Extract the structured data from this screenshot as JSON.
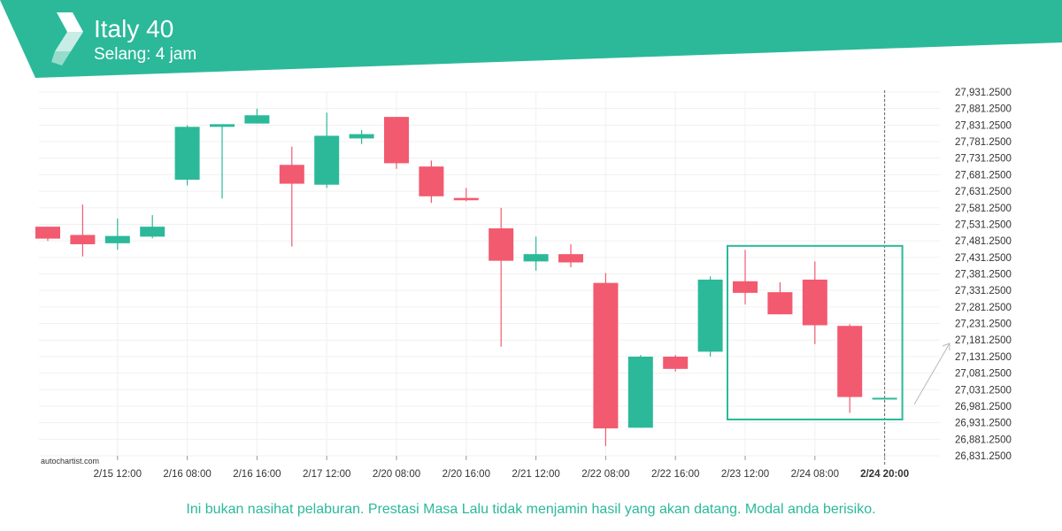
{
  "header": {
    "title": "Italy 40",
    "subtitle": "Selang: 4 jam",
    "brand_color": "#2bb99a"
  },
  "watermark": "autochartist.com",
  "disclaimer": "Ini bukan nasihat pelaburan. Prestasi Masa Lalu tidak menjamin hasil yang akan datang. Modal anda berisiko.",
  "chart_data": {
    "type": "candlestick",
    "y_ticks": [
      "26,831.2500",
      "26,881.2500",
      "26,931.2500",
      "26,981.2500",
      "27,031.2500",
      "27,081.2500",
      "27,131.2500",
      "27,181.2500",
      "27,231.2500",
      "27,281.2500",
      "27,331.2500",
      "27,381.2500",
      "27,431.2500",
      "27,481.2500",
      "27,531.2500",
      "27,581.2500",
      "27,631.2500",
      "27,681.2500",
      "27,731.2500",
      "27,781.2500",
      "27,831.2500",
      "27,881.2500",
      "27,931.2500"
    ],
    "ylim": [
      26831.25,
      27931.25
    ],
    "x_ticks": [
      {
        "label": "2/15 12:00",
        "index": 2
      },
      {
        "label": "2/16 08:00",
        "index": 4
      },
      {
        "label": "2/16 16:00",
        "index": 6
      },
      {
        "label": "2/17 12:00",
        "index": 8
      },
      {
        "label": "2/20 08:00",
        "index": 10
      },
      {
        "label": "2/20 16:00",
        "index": 12
      },
      {
        "label": "2/21 12:00",
        "index": 14
      },
      {
        "label": "2/22 08:00",
        "index": 16
      },
      {
        "label": "2/22 16:00",
        "index": 18
      },
      {
        "label": "2/23 12:00",
        "index": 20
      },
      {
        "label": "2/24 08:00",
        "index": 22
      },
      {
        "label": "2/24 20:00",
        "index": 24,
        "bold": true
      }
    ],
    "colors": {
      "up": "#2bb99a",
      "down": "#f25a6f"
    },
    "candles": [
      {
        "o": 27524,
        "h": 27524,
        "l": 27481,
        "c": 27488
      },
      {
        "o": 27499,
        "h": 27591,
        "l": 27434,
        "c": 27471
      },
      {
        "o": 27474,
        "h": 27549,
        "l": 27454,
        "c": 27496
      },
      {
        "o": 27494,
        "h": 27559,
        "l": 27489,
        "c": 27524
      },
      {
        "o": 27666,
        "h": 27831,
        "l": 27649,
        "c": 27826
      },
      {
        "o": 27826,
        "h": 27834,
        "l": 27609,
        "c": 27834
      },
      {
        "o": 27836,
        "h": 27881,
        "l": 27836,
        "c": 27861
      },
      {
        "o": 27711,
        "h": 27766,
        "l": 27464,
        "c": 27654
      },
      {
        "o": 27651,
        "h": 27869,
        "l": 27641,
        "c": 27799
      },
      {
        "o": 27791,
        "h": 27816,
        "l": 27774,
        "c": 27804
      },
      {
        "o": 27856,
        "h": 27856,
        "l": 27699,
        "c": 27716
      },
      {
        "o": 27706,
        "h": 27724,
        "l": 27596,
        "c": 27616
      },
      {
        "o": 27611,
        "h": 27641,
        "l": 27601,
        "c": 27604
      },
      {
        "o": 27519,
        "h": 27581,
        "l": 27161,
        "c": 27421
      },
      {
        "o": 27419,
        "h": 27494,
        "l": 27391,
        "c": 27441
      },
      {
        "o": 27441,
        "h": 27471,
        "l": 27401,
        "c": 27416
      },
      {
        "o": 27354,
        "h": 27384,
        "l": 26861,
        "c": 26914
      },
      {
        "o": 26916,
        "h": 27136,
        "l": 26916,
        "c": 27131
      },
      {
        "o": 27131,
        "h": 27136,
        "l": 27086,
        "c": 27094
      },
      {
        "o": 27146,
        "h": 27374,
        "l": 27131,
        "c": 27364
      },
      {
        "o": 27359,
        "h": 27454,
        "l": 27289,
        "c": 27324
      },
      {
        "o": 27326,
        "h": 27356,
        "l": 27259,
        "c": 27259
      },
      {
        "o": 27364,
        "h": 27419,
        "l": 27169,
        "c": 27226
      },
      {
        "o": 27224,
        "h": 27229,
        "l": 26961,
        "c": 27009
      },
      {
        "o": 27004,
        "h": 27004,
        "l": 27004,
        "c": 27004
      }
    ],
    "highlight_box": {
      "from_index": 20,
      "to_index": 24,
      "y_top": 27466,
      "y_bottom": 26941,
      "color": "#2bb99a"
    },
    "grid": true
  }
}
